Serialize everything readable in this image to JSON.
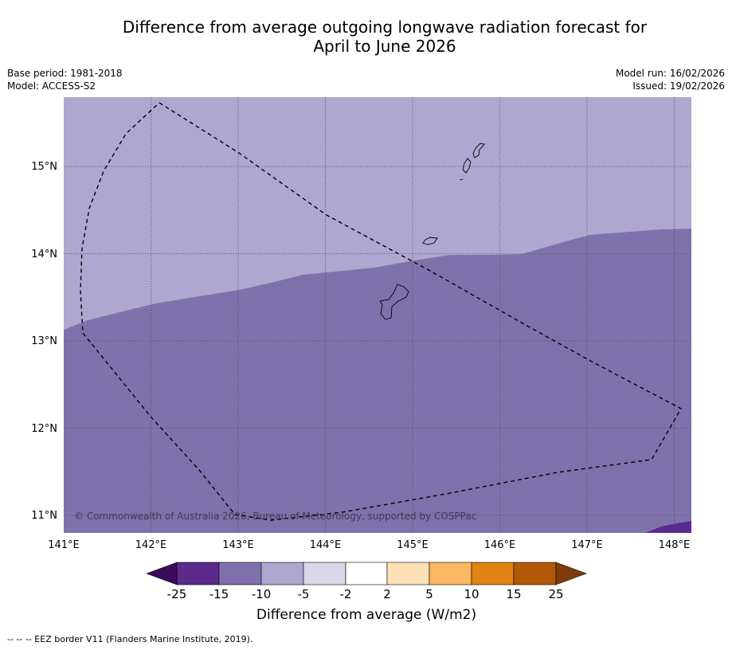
{
  "title": {
    "line1": "Difference from average outgoing longwave radiation forecast for",
    "line2": "April to June 2026"
  },
  "meta": {
    "base_period": "Base period: 1981-2018",
    "model": "Model: ACCESS-S2",
    "model_run": "Model run: 16/02/2026",
    "issued": "Issued: 19/02/2026"
  },
  "map": {
    "lon_labels": [
      "141°E",
      "142°E",
      "143°E",
      "144°E",
      "145°E",
      "146°E",
      "147°E",
      "148°E"
    ],
    "lat_labels": [
      "15°N",
      "14°N",
      "13°N",
      "12°N",
      "11°N"
    ],
    "copyright": "© Commonwealth of Australia 2026, Bureau of Meteorology, supported by COSPPac",
    "colors": {
      "light_purple": "#aea7cf",
      "mid_purple": "#7f72ac",
      "dark_purple": "#5a2a90",
      "grid": "#444444"
    }
  },
  "colorbar": {
    "tick_labels": [
      "-25",
      "-15",
      "-10",
      "-5",
      "-2",
      "2",
      "5",
      "10",
      "15",
      "25"
    ],
    "label": "Difference from average (W/m2)",
    "colors": [
      "#3a0a5c",
      "#5b2a8c",
      "#8071ad",
      "#aea7cf",
      "#d9d7ea",
      "#ffffff",
      "#fde0b6",
      "#fcb862",
      "#e08214",
      "#b35806",
      "#7f3b08"
    ]
  },
  "footnote": "--  --  -- EEZ border V11 (Flanders Marine Institute, 2019)."
}
